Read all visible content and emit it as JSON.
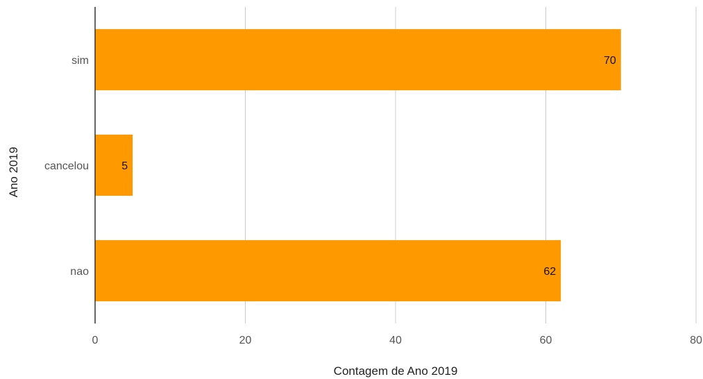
{
  "chart_data": {
    "type": "bar",
    "orientation": "horizontal",
    "categories": [
      "sim",
      "cancelou",
      "nao"
    ],
    "values": [
      70,
      5,
      62
    ],
    "data_labels": [
      "70",
      "5",
      "62"
    ],
    "xlabel": "Contagem de Ano 2019",
    "ylabel": "Ano 2019",
    "xlim": [
      0,
      80
    ],
    "xticks": [
      "0",
      "20",
      "40",
      "60",
      "80"
    ],
    "grid": "vertical",
    "bar_color": "#FF9900"
  }
}
